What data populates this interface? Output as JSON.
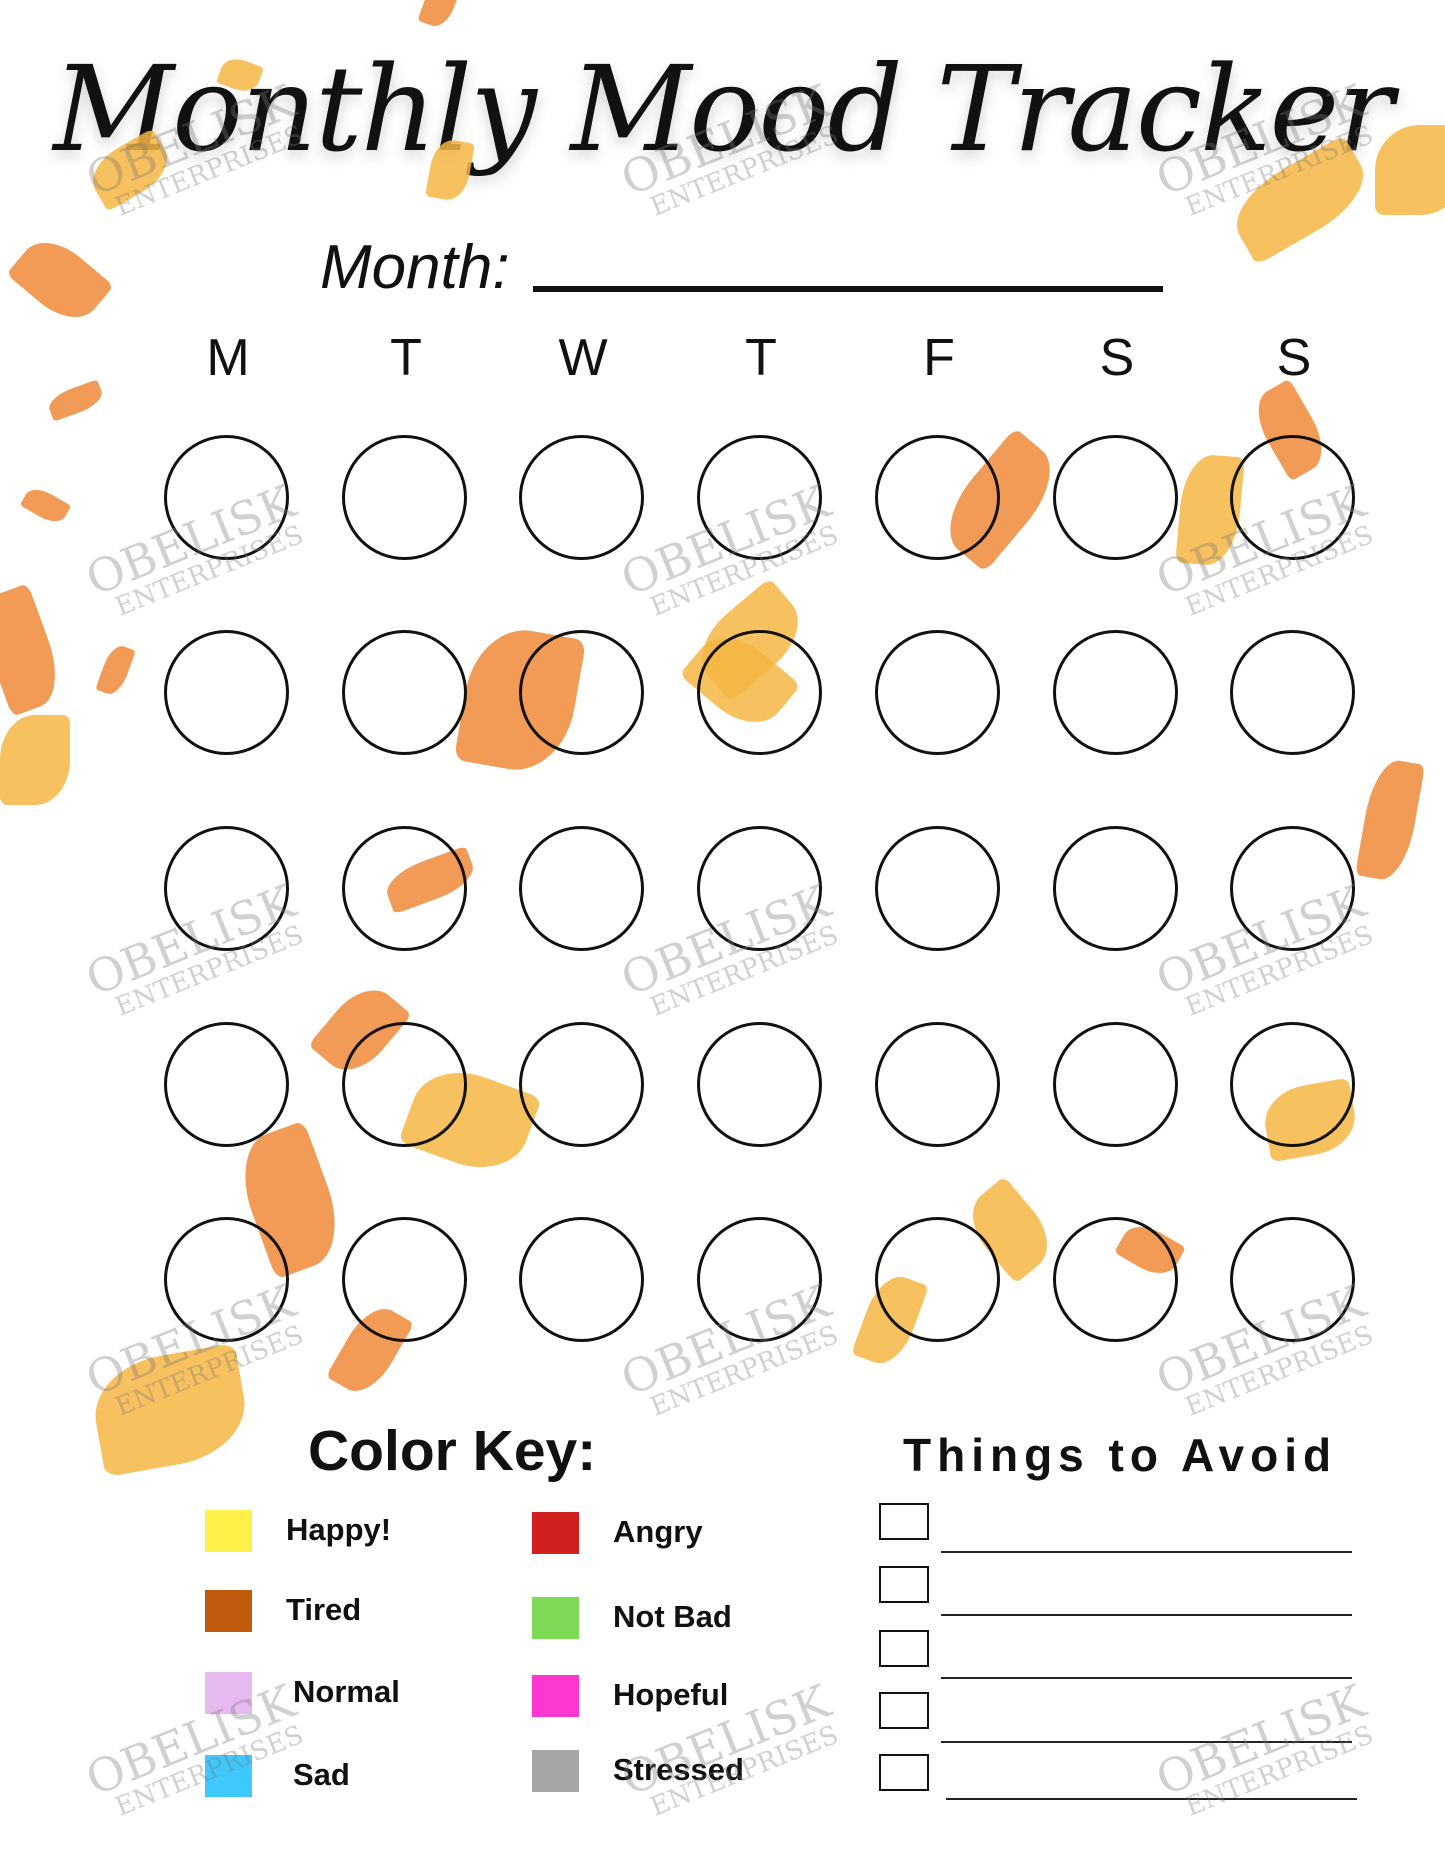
{
  "title": "Monthly Mood Tracker",
  "month_label": "Month:",
  "days": [
    "M",
    "T",
    "W",
    "T",
    "F",
    "S",
    "S"
  ],
  "weeks": 5,
  "color_key": {
    "title": "Color Key:",
    "items": [
      {
        "label": "Happy!",
        "color": "#fff04a"
      },
      {
        "label": "Tired",
        "color": "#c05a0c"
      },
      {
        "label": "Normal",
        "color": "#e6baf0"
      },
      {
        "label": "Sad",
        "color": "#3ec8fc"
      },
      {
        "label": "Angry",
        "color": "#d02020"
      },
      {
        "label": "Not Bad",
        "color": "#7ed957"
      },
      {
        "label": "Hopeful",
        "color": "#fb37d0"
      },
      {
        "label": "Stressed",
        "color": "#a6a6a6"
      }
    ]
  },
  "things_to_avoid": {
    "title": "Things to Avoid",
    "count": 5
  },
  "watermark": {
    "line1": "OBELISK",
    "line2": "ENTERPRISES"
  },
  "leaf_colors": [
    "#f08a3a",
    "#f5b642"
  ]
}
